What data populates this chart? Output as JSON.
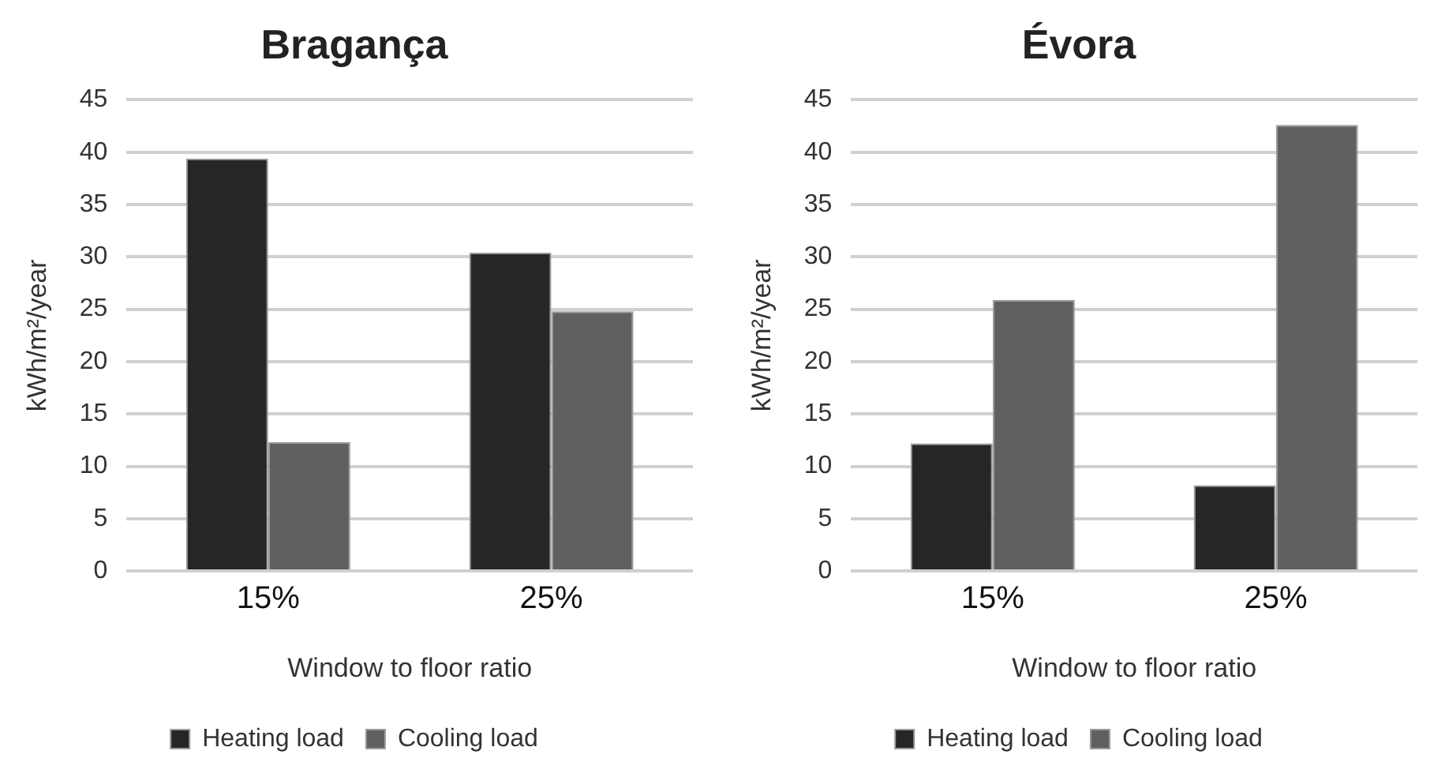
{
  "chart_data": [
    {
      "type": "bar",
      "title": "Bragança",
      "xlabel": "Window to floor ratio",
      "ylabel": "kWh/m²/year",
      "categories": [
        "15%",
        "25%"
      ],
      "series": [
        {
          "name": "Heating load",
          "color": "#262626",
          "values": [
            39.4,
            30.4
          ]
        },
        {
          "name": "Cooling load",
          "color": "#606060",
          "values": [
            12.3,
            24.8
          ]
        }
      ],
      "ylim": [
        0,
        45
      ],
      "yticks": [
        0,
        5,
        10,
        15,
        20,
        25,
        30,
        35,
        40,
        45
      ],
      "grid": "y",
      "legend": "bottom"
    },
    {
      "type": "bar",
      "title": "Évora",
      "xlabel": "Window to floor ratio",
      "ylabel": "kWh/m²/year",
      "categories": [
        "15%",
        "25%"
      ],
      "series": [
        {
          "name": "Heating load",
          "color": "#262626",
          "values": [
            12.2,
            8.2
          ]
        },
        {
          "name": "Cooling load",
          "color": "#606060",
          "values": [
            25.9,
            42.6
          ]
        }
      ],
      "ylim": [
        0,
        45
      ],
      "yticks": [
        0,
        5,
        10,
        15,
        20,
        25,
        30,
        35,
        40,
        45
      ],
      "grid": "y",
      "legend": "bottom"
    }
  ]
}
